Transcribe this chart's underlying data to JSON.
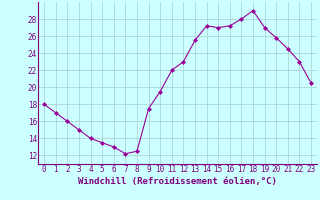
{
  "x": [
    0,
    1,
    2,
    3,
    4,
    5,
    6,
    7,
    8,
    9,
    10,
    11,
    12,
    13,
    14,
    15,
    16,
    17,
    18,
    19,
    20,
    21,
    22,
    23
  ],
  "y": [
    18,
    17,
    16,
    15,
    14,
    13.5,
    13,
    12.2,
    12.5,
    17.5,
    19.5,
    22,
    23,
    25.5,
    27.2,
    27,
    27.2,
    28,
    29,
    27,
    25.8,
    24.5,
    23,
    20.5
  ],
  "line_color": "#990099",
  "marker": "D",
  "marker_size": 2,
  "bg_color": "#ccffff",
  "grid_color": "#aacccc",
  "xlabel": "Windchill (Refroidissement éolien,°C)",
  "xlabel_fontsize": 6.5,
  "xlim": [
    -0.5,
    23.5
  ],
  "ylim": [
    11,
    30
  ],
  "yticks": [
    12,
    14,
    16,
    18,
    20,
    22,
    24,
    26,
    28
  ],
  "xticks": [
    0,
    1,
    2,
    3,
    4,
    5,
    6,
    7,
    8,
    9,
    10,
    11,
    12,
    13,
    14,
    15,
    16,
    17,
    18,
    19,
    20,
    21,
    22,
    23
  ],
  "tick_fontsize": 5.5,
  "spine_color": "#800080",
  "tick_color": "#800080"
}
